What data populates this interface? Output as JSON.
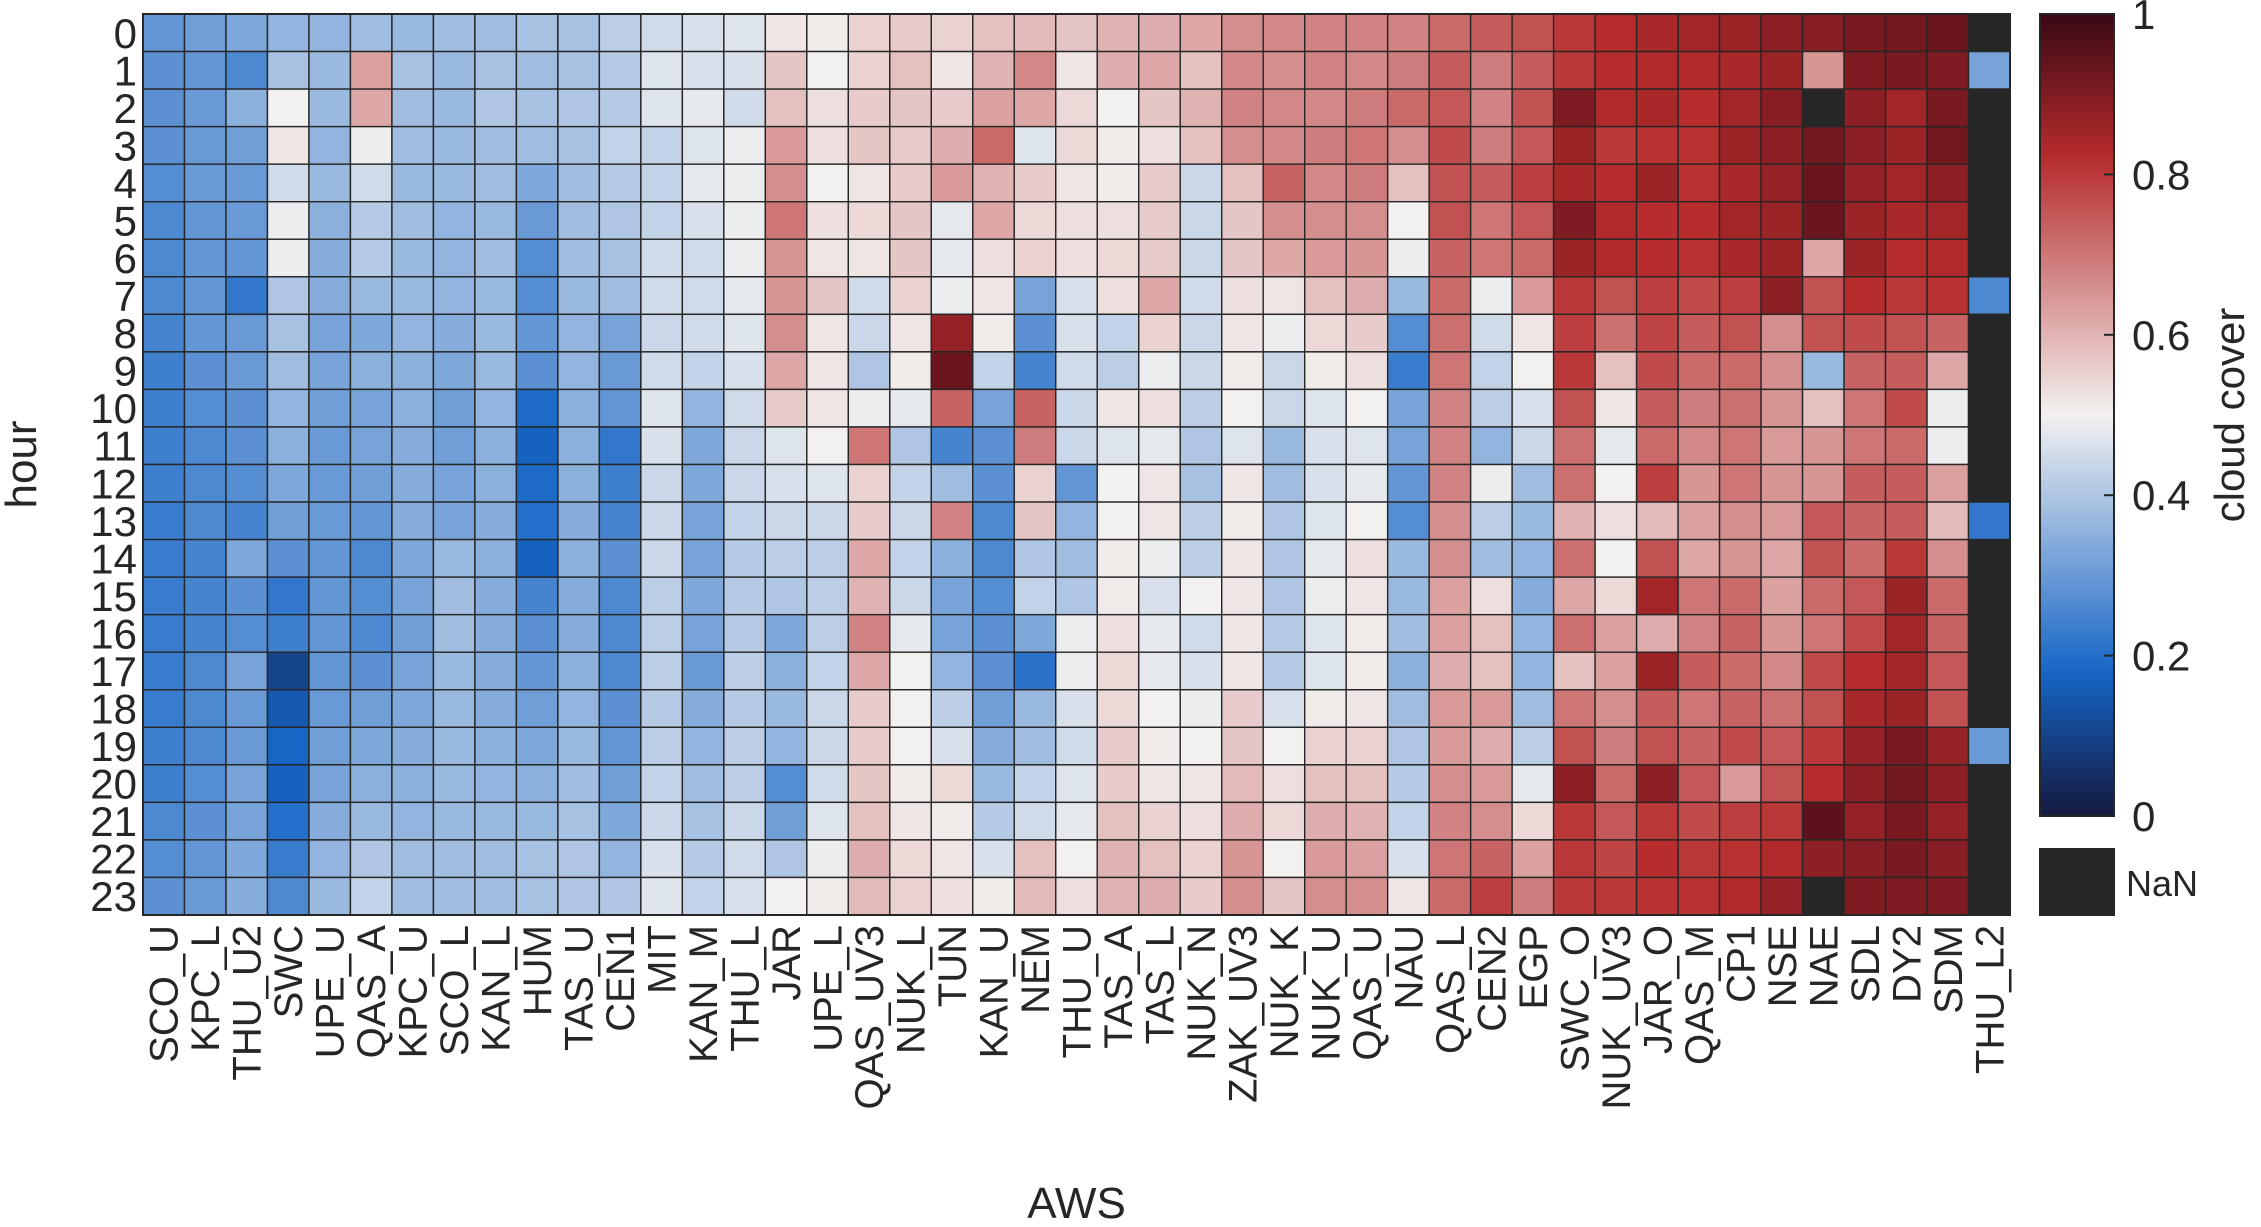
{
  "chart_data": {
    "type": "heatmap",
    "title": "",
    "xlabel": "AWS",
    "ylabel": "hour",
    "colorbar_label": "cloud cover",
    "colorbar_ticks": [
      "0",
      "0.2",
      "0.4",
      "0.6",
      "0.8",
      "1"
    ],
    "clim": [
      0,
      1
    ],
    "nan_label": "NaN",
    "colormap": "diverging blue-white-red",
    "colors": {
      "low": "#14193f",
      "blue": "#1666c6",
      "mid": "#f3f1f0",
      "red": "#b72c2c",
      "high": "#3a0815",
      "nan": "#262626"
    },
    "rows": [
      "0",
      "1",
      "2",
      "3",
      "4",
      "5",
      "6",
      "7",
      "8",
      "9",
      "10",
      "11",
      "12",
      "13",
      "14",
      "15",
      "16",
      "17",
      "18",
      "19",
      "20",
      "21",
      "22",
      "23"
    ],
    "columns": [
      "SCO_U",
      "KPC_L",
      "THU_U2",
      "SWC",
      "UPE_U",
      "QAS_A",
      "KPC_U",
      "SCO_L",
      "KAN_L",
      "HUM",
      "TAS_U",
      "CEN1",
      "MIT",
      "KAN_M",
      "THU_L",
      "JAR",
      "UPE_L",
      "QAS_UV3",
      "NUK_L",
      "TUN",
      "KAN_U",
      "NEM",
      "THU_U",
      "TAS_A",
      "TAS_L",
      "NUK_N",
      "ZAK_UV3",
      "NUK_K",
      "NUK_U",
      "QAS_U",
      "NAU",
      "QAS_L",
      "CEN2",
      "EGP",
      "SWC_O",
      "NUK_UV3",
      "JAR_O",
      "QAS_M",
      "CP1",
      "NSE",
      "NAE",
      "SDL",
      "DY2",
      "SDM",
      "THU_L2"
    ],
    "values": [
      [
        0.29,
        0.31,
        0.33,
        0.36,
        0.36,
        0.38,
        0.37,
        0.38,
        0.38,
        0.39,
        0.39,
        0.42,
        0.45,
        0.46,
        0.47,
        0.52,
        0.51,
        0.55,
        0.56,
        0.55,
        0.58,
        0.59,
        0.57,
        0.6,
        0.61,
        0.62,
        0.66,
        0.67,
        0.68,
        0.68,
        0.68,
        0.72,
        0.74,
        0.76,
        0.8,
        0.82,
        0.84,
        0.85,
        0.86,
        0.88,
        0.89,
        0.91,
        0.92,
        0.93,
        null
      ],
      [
        0.28,
        0.29,
        0.26,
        0.39,
        0.37,
        0.63,
        0.39,
        0.37,
        0.39,
        0.38,
        0.39,
        0.41,
        0.47,
        0.46,
        0.46,
        0.57,
        0.5,
        0.55,
        0.58,
        0.52,
        0.6,
        0.67,
        0.52,
        0.61,
        0.62,
        0.58,
        0.67,
        0.66,
        0.68,
        0.67,
        0.69,
        0.74,
        0.69,
        0.74,
        0.8,
        0.82,
        0.83,
        0.83,
        0.84,
        0.86,
        0.65,
        0.9,
        0.91,
        0.9,
        0.32
      ],
      [
        0.28,
        0.3,
        0.35,
        0.5,
        0.37,
        0.62,
        0.38,
        0.37,
        0.4,
        0.39,
        0.4,
        0.41,
        0.47,
        0.48,
        0.45,
        0.58,
        0.53,
        0.56,
        0.57,
        0.56,
        0.63,
        0.62,
        0.54,
        0.5,
        0.57,
        0.6,
        0.68,
        0.67,
        0.67,
        0.69,
        0.72,
        0.75,
        0.68,
        0.76,
        0.9,
        0.83,
        0.84,
        0.82,
        0.85,
        0.89,
        null,
        0.88,
        0.85,
        0.91,
        null
      ],
      [
        0.28,
        0.3,
        0.31,
        0.52,
        0.36,
        0.49,
        0.38,
        0.37,
        0.38,
        0.38,
        0.39,
        0.43,
        0.43,
        0.47,
        0.49,
        0.64,
        0.53,
        0.57,
        0.56,
        0.61,
        0.72,
        0.47,
        0.54,
        0.51,
        0.53,
        0.58,
        0.66,
        0.67,
        0.69,
        0.7,
        0.66,
        0.77,
        0.69,
        0.75,
        0.86,
        0.8,
        0.81,
        0.81,
        0.86,
        0.88,
        0.92,
        0.88,
        0.86,
        0.92,
        null
      ],
      [
        0.27,
        0.3,
        0.3,
        0.45,
        0.37,
        0.45,
        0.37,
        0.37,
        0.38,
        0.33,
        0.38,
        0.41,
        0.43,
        0.48,
        0.49,
        0.66,
        0.5,
        0.52,
        0.56,
        0.64,
        0.6,
        0.56,
        0.52,
        0.51,
        0.56,
        0.44,
        0.58,
        0.73,
        0.67,
        0.69,
        0.58,
        0.76,
        0.74,
        0.79,
        0.84,
        0.82,
        0.86,
        0.81,
        0.84,
        0.87,
        0.93,
        0.87,
        0.85,
        0.88,
        null
      ],
      [
        0.26,
        0.29,
        0.3,
        0.49,
        0.35,
        0.41,
        0.38,
        0.36,
        0.37,
        0.3,
        0.38,
        0.4,
        0.43,
        0.46,
        0.49,
        0.7,
        0.53,
        0.54,
        0.57,
        0.48,
        0.62,
        0.54,
        0.53,
        0.53,
        0.56,
        0.44,
        0.57,
        0.66,
        0.66,
        0.66,
        0.5,
        0.76,
        0.7,
        0.75,
        0.9,
        0.83,
        0.82,
        0.82,
        0.85,
        0.86,
        0.93,
        0.86,
        0.84,
        0.85,
        null
      ],
      [
        0.26,
        0.29,
        0.29,
        0.49,
        0.34,
        0.41,
        0.37,
        0.36,
        0.38,
        0.27,
        0.38,
        0.39,
        0.45,
        0.45,
        0.49,
        0.65,
        0.52,
        0.52,
        0.57,
        0.48,
        0.53,
        0.55,
        0.53,
        0.54,
        0.56,
        0.44,
        0.57,
        0.62,
        0.64,
        0.65,
        0.49,
        0.73,
        0.7,
        0.72,
        0.86,
        0.83,
        0.82,
        0.81,
        0.84,
        0.86,
        0.62,
        0.86,
        0.82,
        0.83,
        null
      ],
      [
        0.26,
        0.29,
        0.22,
        0.4,
        0.34,
        0.37,
        0.37,
        0.36,
        0.37,
        0.27,
        0.37,
        0.38,
        0.45,
        0.45,
        0.48,
        0.65,
        0.57,
        0.45,
        0.55,
        0.49,
        0.52,
        0.32,
        0.46,
        0.53,
        0.62,
        0.45,
        0.53,
        0.52,
        0.58,
        0.61,
        0.37,
        0.72,
        0.49,
        0.64,
        0.8,
        0.76,
        0.79,
        0.77,
        0.79,
        0.88,
        0.76,
        0.82,
        0.8,
        0.81,
        0.26
      ],
      [
        0.25,
        0.29,
        0.3,
        0.39,
        0.32,
        0.33,
        0.36,
        0.34,
        0.37,
        0.29,
        0.36,
        0.32,
        0.44,
        0.45,
        0.47,
        0.66,
        0.52,
        0.44,
        0.52,
        0.87,
        0.51,
        0.28,
        0.46,
        0.43,
        0.55,
        0.44,
        0.52,
        0.49,
        0.54,
        0.56,
        0.27,
        0.71,
        0.45,
        0.52,
        0.79,
        0.71,
        0.78,
        0.74,
        0.76,
        0.66,
        0.76,
        0.77,
        0.76,
        0.73,
        null
      ],
      [
        0.24,
        0.28,
        0.3,
        0.38,
        0.32,
        0.35,
        0.35,
        0.33,
        0.37,
        0.28,
        0.36,
        0.3,
        0.45,
        0.43,
        0.46,
        0.62,
        0.52,
        0.4,
        0.51,
        0.93,
        0.43,
        0.25,
        0.45,
        0.42,
        0.49,
        0.44,
        0.51,
        0.44,
        0.51,
        0.53,
        0.23,
        0.7,
        0.43,
        0.5,
        0.8,
        0.58,
        0.77,
        0.72,
        0.72,
        0.66,
        0.37,
        0.73,
        0.74,
        0.62,
        null
      ],
      [
        0.24,
        0.27,
        0.28,
        0.36,
        0.31,
        0.32,
        0.35,
        0.31,
        0.36,
        0.19,
        0.35,
        0.29,
        0.47,
        0.36,
        0.45,
        0.56,
        0.52,
        0.49,
        0.48,
        0.73,
        0.32,
        0.73,
        0.44,
        0.52,
        0.53,
        0.42,
        0.5,
        0.44,
        0.47,
        0.5,
        0.32,
        0.68,
        0.42,
        0.46,
        0.76,
        0.52,
        0.74,
        0.69,
        0.71,
        0.65,
        0.58,
        0.7,
        0.77,
        0.49,
        null
      ],
      [
        0.24,
        0.26,
        0.28,
        0.35,
        0.3,
        0.32,
        0.34,
        0.31,
        0.35,
        0.17,
        0.35,
        0.22,
        0.46,
        0.33,
        0.44,
        0.47,
        0.5,
        0.7,
        0.4,
        0.25,
        0.28,
        0.69,
        0.44,
        0.47,
        0.48,
        0.4,
        0.47,
        0.37,
        0.46,
        0.47,
        0.32,
        0.68,
        0.36,
        0.44,
        0.71,
        0.48,
        0.72,
        0.67,
        0.7,
        0.64,
        0.65,
        0.7,
        0.72,
        0.49,
        null
      ],
      [
        0.24,
        0.26,
        0.27,
        0.33,
        0.3,
        0.31,
        0.34,
        0.32,
        0.35,
        0.19,
        0.35,
        0.24,
        0.44,
        0.33,
        0.44,
        0.46,
        0.47,
        0.55,
        0.43,
        0.38,
        0.28,
        0.55,
        0.29,
        0.5,
        0.52,
        0.39,
        0.52,
        0.38,
        0.46,
        0.48,
        0.29,
        0.68,
        0.49,
        0.38,
        0.71,
        0.5,
        0.79,
        0.65,
        0.7,
        0.65,
        0.65,
        0.74,
        0.74,
        0.63,
        null
      ],
      [
        0.23,
        0.26,
        0.25,
        0.31,
        0.3,
        0.29,
        0.34,
        0.32,
        0.34,
        0.2,
        0.34,
        0.25,
        0.44,
        0.32,
        0.43,
        0.44,
        0.44,
        0.56,
        0.44,
        0.68,
        0.26,
        0.57,
        0.36,
        0.5,
        0.52,
        0.42,
        0.51,
        0.4,
        0.47,
        0.5,
        0.27,
        0.66,
        0.42,
        0.37,
        0.6,
        0.53,
        0.59,
        0.63,
        0.66,
        0.64,
        0.75,
        0.73,
        0.74,
        0.59,
        0.22
      ],
      [
        0.23,
        0.25,
        0.33,
        0.28,
        0.29,
        0.26,
        0.33,
        0.37,
        0.35,
        0.17,
        0.35,
        0.28,
        0.44,
        0.32,
        0.41,
        0.42,
        0.42,
        0.62,
        0.43,
        0.35,
        0.26,
        0.4,
        0.38,
        0.51,
        0.49,
        0.42,
        0.52,
        0.4,
        0.48,
        0.53,
        0.37,
        0.66,
        0.38,
        0.36,
        0.71,
        0.5,
        0.76,
        0.62,
        0.65,
        0.62,
        0.76,
        0.72,
        0.8,
        0.66,
        null
      ],
      [
        0.23,
        0.25,
        0.28,
        0.22,
        0.29,
        0.27,
        0.32,
        0.38,
        0.34,
        0.25,
        0.34,
        0.26,
        0.42,
        0.33,
        0.41,
        0.4,
        0.42,
        0.6,
        0.44,
        0.32,
        0.27,
        0.43,
        0.4,
        0.51,
        0.46,
        0.5,
        0.52,
        0.4,
        0.49,
        0.52,
        0.37,
        0.63,
        0.53,
        0.34,
        0.62,
        0.54,
        0.85,
        0.7,
        0.72,
        0.63,
        0.72,
        0.75,
        0.86,
        0.72,
        null
      ],
      [
        0.23,
        0.25,
        0.27,
        0.24,
        0.29,
        0.26,
        0.31,
        0.38,
        0.34,
        0.28,
        0.34,
        0.26,
        0.42,
        0.32,
        0.41,
        0.33,
        0.42,
        0.68,
        0.48,
        0.32,
        0.28,
        0.33,
        0.49,
        0.53,
        0.48,
        0.45,
        0.52,
        0.41,
        0.47,
        0.51,
        0.38,
        0.63,
        0.58,
        0.36,
        0.71,
        0.63,
        0.61,
        0.68,
        0.73,
        0.65,
        0.7,
        0.77,
        0.85,
        0.73,
        null
      ],
      [
        0.23,
        0.26,
        0.32,
        0.1,
        0.29,
        0.28,
        0.32,
        0.37,
        0.34,
        0.29,
        0.35,
        0.26,
        0.42,
        0.3,
        0.42,
        0.35,
        0.43,
        0.62,
        0.5,
        0.36,
        0.28,
        0.21,
        0.49,
        0.54,
        0.48,
        0.46,
        0.52,
        0.41,
        0.47,
        0.51,
        0.35,
        0.61,
        0.58,
        0.36,
        0.58,
        0.63,
        0.86,
        0.74,
        0.72,
        0.67,
        0.77,
        0.82,
        0.85,
        0.75,
        null
      ],
      [
        0.23,
        0.26,
        0.3,
        0.15,
        0.3,
        0.31,
        0.33,
        0.37,
        0.34,
        0.31,
        0.36,
        0.28,
        0.41,
        0.34,
        0.41,
        0.37,
        0.44,
        0.56,
        0.5,
        0.42,
        0.31,
        0.37,
        0.46,
        0.54,
        0.5,
        0.49,
        0.56,
        0.46,
        0.51,
        0.52,
        0.38,
        0.64,
        0.64,
        0.38,
        0.7,
        0.66,
        0.74,
        0.7,
        0.73,
        0.71,
        0.76,
        0.84,
        0.86,
        0.76,
        null
      ],
      [
        0.24,
        0.26,
        0.3,
        0.18,
        0.31,
        0.33,
        0.34,
        0.37,
        0.35,
        0.33,
        0.37,
        0.29,
        0.42,
        0.36,
        0.42,
        0.36,
        0.44,
        0.56,
        0.5,
        0.46,
        0.34,
        0.38,
        0.45,
        0.56,
        0.51,
        0.5,
        0.57,
        0.5,
        0.55,
        0.55,
        0.4,
        0.64,
        0.61,
        0.42,
        0.76,
        0.69,
        0.76,
        0.73,
        0.77,
        0.75,
        0.8,
        0.87,
        0.91,
        0.87,
        0.3
      ],
      [
        0.24,
        0.27,
        0.32,
        0.17,
        0.32,
        0.35,
        0.35,
        0.37,
        0.36,
        0.35,
        0.38,
        0.31,
        0.43,
        0.38,
        0.42,
        0.27,
        0.45,
        0.57,
        0.51,
        0.54,
        0.37,
        0.43,
        0.47,
        0.56,
        0.52,
        0.52,
        0.59,
        0.53,
        0.58,
        0.58,
        0.41,
        0.66,
        0.64,
        0.48,
        0.88,
        0.72,
        0.88,
        0.75,
        0.64,
        0.76,
        0.82,
        0.88,
        0.92,
        0.88,
        null
      ],
      [
        0.26,
        0.28,
        0.32,
        0.2,
        0.34,
        0.37,
        0.36,
        0.37,
        0.37,
        0.37,
        0.39,
        0.33,
        0.44,
        0.39,
        0.44,
        0.31,
        0.47,
        0.58,
        0.52,
        0.51,
        0.41,
        0.45,
        0.48,
        0.58,
        0.55,
        0.53,
        0.61,
        0.54,
        0.61,
        0.6,
        0.43,
        0.68,
        0.66,
        0.54,
        0.8,
        0.75,
        0.8,
        0.77,
        0.79,
        0.8,
        0.95,
        0.87,
        0.91,
        0.87,
        null
      ],
      [
        0.27,
        0.29,
        0.33,
        0.23,
        0.36,
        0.4,
        0.38,
        0.38,
        0.38,
        0.39,
        0.4,
        0.36,
        0.46,
        0.41,
        0.45,
        0.4,
        0.49,
        0.61,
        0.54,
        0.52,
        0.46,
        0.58,
        0.5,
        0.6,
        0.58,
        0.55,
        0.65,
        0.5,
        0.64,
        0.63,
        0.46,
        0.7,
        0.73,
        0.63,
        0.8,
        0.78,
        0.82,
        0.8,
        0.81,
        0.83,
        0.88,
        0.89,
        0.91,
        0.89,
        null
      ],
      [
        0.28,
        0.3,
        0.34,
        0.26,
        0.37,
        0.43,
        0.38,
        0.38,
        0.38,
        0.39,
        0.4,
        0.4,
        0.47,
        0.43,
        0.46,
        0.5,
        0.51,
        0.59,
        0.55,
        0.53,
        0.51,
        0.59,
        0.53,
        0.6,
        0.61,
        0.56,
        0.66,
        0.57,
        0.66,
        0.66,
        0.52,
        0.72,
        0.79,
        0.69,
        0.8,
        0.8,
        0.81,
        0.81,
        0.83,
        0.87,
        null,
        0.9,
        0.9,
        0.9,
        null
      ]
    ]
  }
}
